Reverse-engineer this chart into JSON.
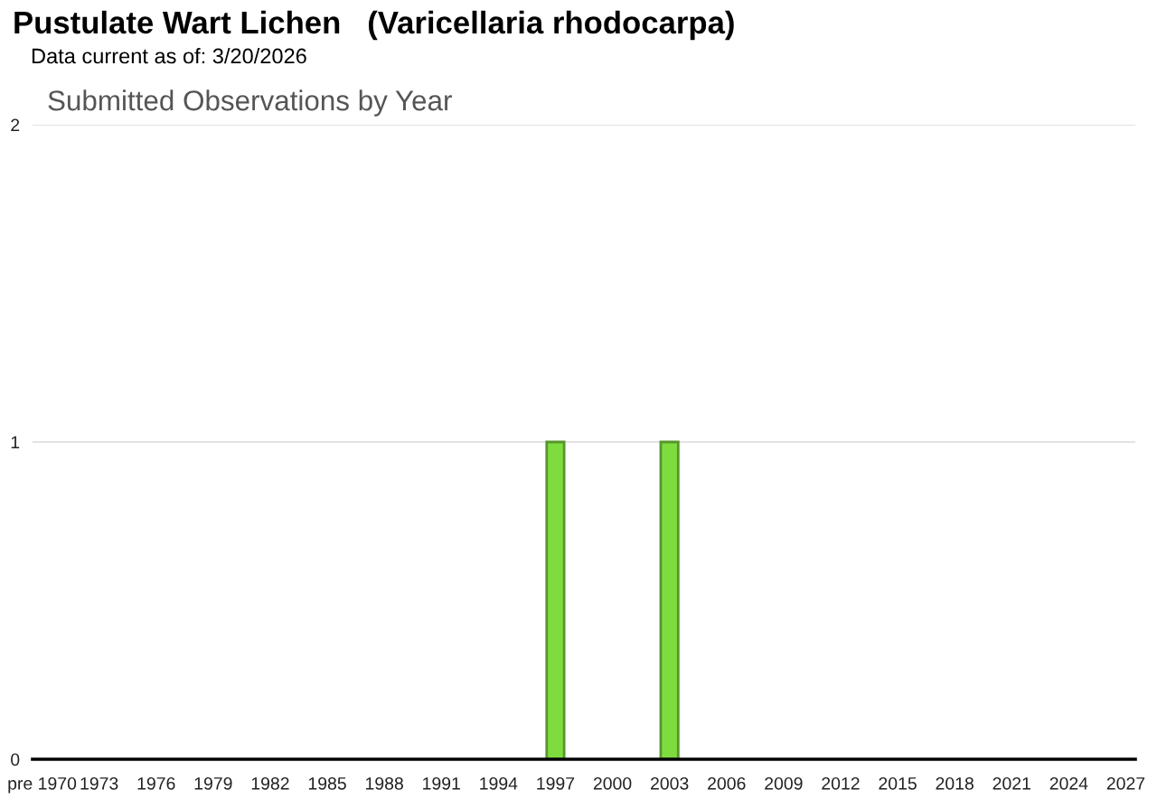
{
  "chart_data": {
    "type": "bar",
    "title": "Pustulate Wart Lichen   (Varicellaria rhodocarpa)",
    "subtitle": "Data current as of: 3/20/2026",
    "annotations": [
      "Submitted Observations by Year"
    ],
    "categories": [
      "pre 1970",
      null,
      null,
      "1973",
      null,
      null,
      "1976",
      null,
      null,
      "1979",
      null,
      null,
      "1982",
      null,
      null,
      "1985",
      null,
      null,
      "1988",
      null,
      null,
      "1991",
      null,
      null,
      "1994",
      null,
      null,
      "1997",
      null,
      null,
      "2000",
      null,
      null,
      "2003",
      null,
      null,
      "2006",
      null,
      null,
      "2009",
      null,
      null,
      "2012",
      null,
      null,
      "2015",
      null,
      null,
      "2018",
      null,
      null,
      "2021",
      null,
      null,
      "2024",
      null,
      null,
      "2027"
    ],
    "values": [
      null,
      null,
      null,
      null,
      null,
      null,
      null,
      null,
      null,
      null,
      null,
      null,
      null,
      null,
      null,
      null,
      null,
      null,
      null,
      null,
      null,
      null,
      null,
      null,
      null,
      null,
      null,
      1,
      null,
      null,
      null,
      null,
      null,
      1,
      null,
      null,
      null,
      null,
      null,
      null,
      null,
      null,
      null,
      null,
      null,
      null,
      null,
      null,
      null,
      null,
      null,
      null,
      null,
      null,
      null,
      null,
      null,
      null
    ],
    "color": "#7fdc3f",
    "ylim": [
      0,
      2
    ],
    "yticks": [
      0,
      1,
      2
    ],
    "grid": "y"
  }
}
